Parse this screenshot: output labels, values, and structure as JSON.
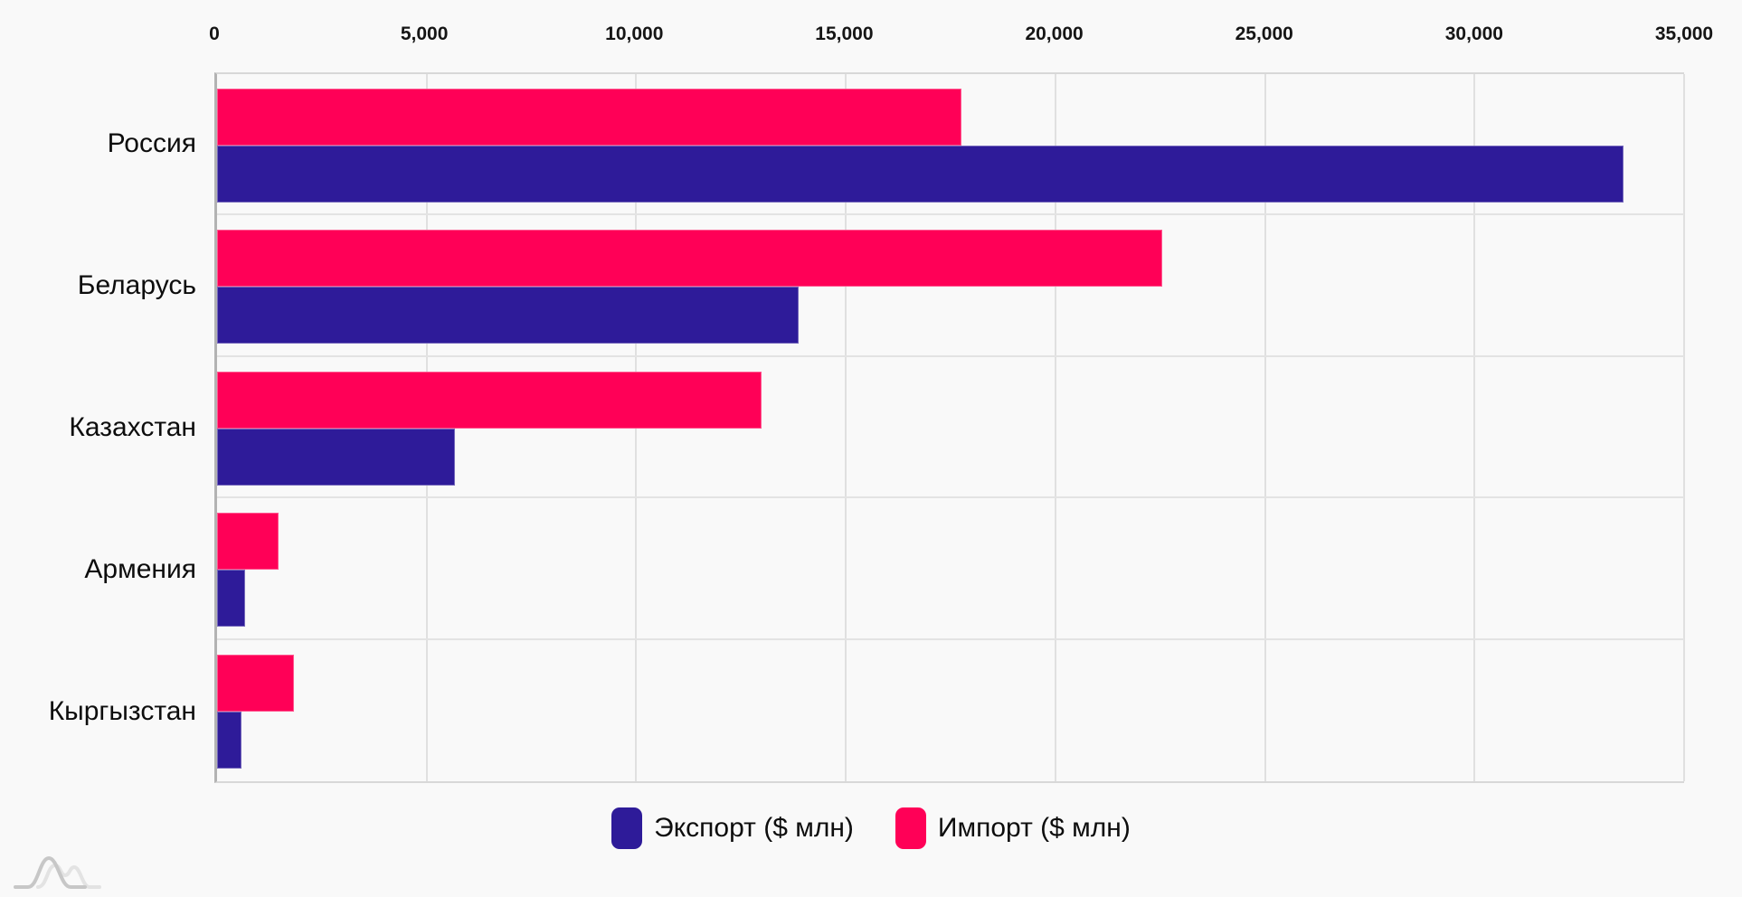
{
  "background_color": "#f9f9f9",
  "chart_data": {
    "type": "bar",
    "orientation": "horizontal",
    "title": "",
    "categories": [
      "Россия",
      "Беларусь",
      "Казахстан",
      "Армения",
      "Кыргызстан"
    ],
    "series": [
      {
        "name": "Экспорт ($ млн)",
        "color": "#2e1b99",
        "values": [
          33550,
          13870,
          5680,
          670,
          580
        ]
      },
      {
        "name": "Импорт ($ млн)",
        "color": "#ff0057",
        "values": [
          17760,
          22550,
          13000,
          1460,
          1830
        ]
      }
    ],
    "row_series_order": [
      1,
      0
    ],
    "x_axis": {
      "position": "top",
      "min": 0,
      "max": 35000,
      "tick_step": 5000,
      "tick_labels": [
        "0",
        "5,000",
        "10,000",
        "15,000",
        "20,000",
        "25,000",
        "30,000",
        "35,000"
      ]
    },
    "grid": "vertical",
    "legend_position": "bottom"
  },
  "legend": {
    "items": [
      {
        "label": "Экспорт ($ млн)",
        "color": "#2e1b99"
      },
      {
        "label": "Импорт ($ млн)",
        "color": "#ff0057"
      }
    ]
  },
  "icons": {
    "logo": "overlapping-bell-curves-logo"
  }
}
